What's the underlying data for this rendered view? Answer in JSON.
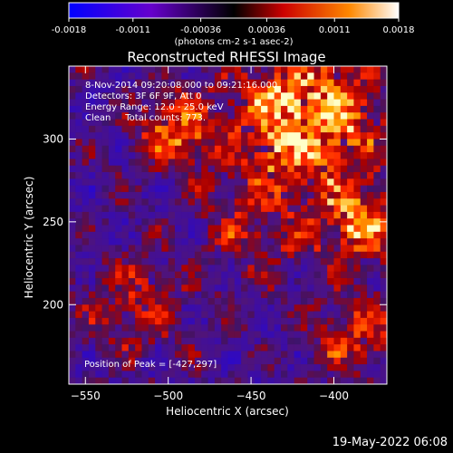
{
  "colorbar": {
    "ticks": [
      "-0.0018",
      "-0.0011",
      "-0.00036",
      "0.00036",
      "0.0011",
      "0.0018"
    ],
    "unit_label": "(photons cm-2 s-1 asec-2)"
  },
  "title": "Reconstructed RHESSI Image",
  "info": {
    "line1": "8-Nov-2014 09:20:08.000 to 09:21:16.000",
    "line2": "Detectors: 3F 6F 9F, Att 0",
    "line3": "Energy Range: 12.0 - 25.0 keV",
    "line4": "Clean     Total counts: 773."
  },
  "peak_label": "Position of Peak = [-427,297]",
  "timestamp": "19-May-2022 06:08",
  "chart_data": {
    "type": "heatmap",
    "xlabel": "Heliocentric X (arcsec)",
    "ylabel": "Heliocentric Y (arcsec)",
    "xlim": [
      -560,
      -368
    ],
    "ylim": [
      152,
      344
    ],
    "x_ticks": [
      -550,
      -500,
      -450,
      -400
    ],
    "y_ticks": [
      200,
      250,
      300
    ],
    "colorscale_range": [
      -0.0018,
      0.0018
    ],
    "peak_position": [
      -427,
      297
    ]
  }
}
